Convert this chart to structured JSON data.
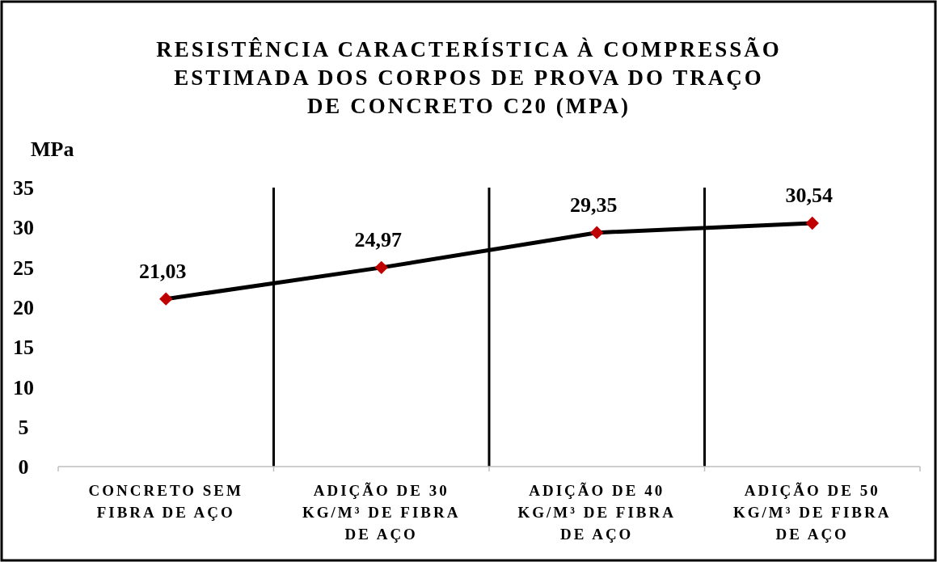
{
  "chart_data": {
    "type": "line",
    "title": "RESISTÊNCIA CARACTERÍSTICA À COMPRESSÃO ESTIMADA DOS CORPOS DE PROVA DO TRAÇO DE CONCRETO C20 (MPA)",
    "ylabel": "MPa",
    "categories": [
      "CONCRETO SEM FIBRA DE AÇO",
      "ADIÇÃO DE 30 KG/M³ DE FIBRA DE AÇO",
      "ADIÇÃO DE 40 KG/M³ DE FIBRA DE AÇO",
      "ADIÇÃO DE 50 KG/M³ DE FIBRA DE AÇO"
    ],
    "series": [
      {
        "color": "#000000",
        "colors": [
          "#c00000",
          "#c00000",
          "#c00000",
          "#c00000"
        ],
        "values": [
          21.03,
          24.97,
          29.35,
          30.54
        ],
        "value_labels": [
          "21,03",
          "24,97",
          "29,35",
          "30,54"
        ]
      }
    ],
    "ylim": [
      0,
      35
    ],
    "yticks": [
      0,
      5,
      10,
      15,
      20,
      25,
      30,
      35
    ],
    "grid": "x",
    "marker": "diamond",
    "line_style": "solid"
  }
}
